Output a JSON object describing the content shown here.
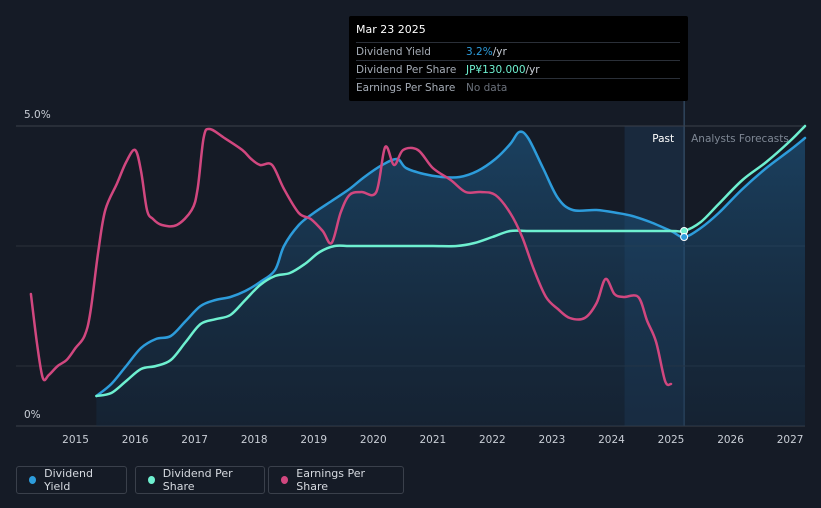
{
  "tooltip": {
    "date": "Mar 23 2025",
    "rows": [
      {
        "label": "Dividend Yield",
        "value": "3.2%",
        "suffix": " /yr",
        "color": "#2d9cdb"
      },
      {
        "label": "Dividend Per Share",
        "value": "JP¥130.000",
        "suffix": " /yr",
        "color": "#6ef0d0"
      },
      {
        "label": "Earnings Per Share",
        "value": "No data",
        "suffix": "",
        "color": "#6b717b"
      }
    ]
  },
  "chart_data": {
    "type": "line",
    "y_tick_labels": [
      "5.0%",
      "0%"
    ],
    "ylim": [
      0,
      5.0
    ],
    "xlim": [
      2014.0,
      2027.25
    ],
    "x_tick_labels": [
      "2015",
      "2016",
      "2017",
      "2018",
      "2019",
      "2020",
      "2021",
      "2022",
      "2023",
      "2024",
      "2025",
      "2026",
      "2027"
    ],
    "x_ticks": [
      2015,
      2016,
      2017,
      2018,
      2019,
      2020,
      2021,
      2022,
      2023,
      2024,
      2025,
      2026,
      2027
    ],
    "past_label": "Past",
    "forecast_label": "Analysts Forecasts",
    "forecast_start": 2025.22,
    "shade_start": 2024.22,
    "grid": true,
    "series": [
      {
        "name": "Dividend Yield",
        "color": "#2d9cdb",
        "area": true,
        "x": [
          2015.35,
          2015.6,
          2015.85,
          2016.1,
          2016.35,
          2016.6,
          2016.85,
          2017.1,
          2017.35,
          2017.6,
          2017.85,
          2018.1,
          2018.35,
          2018.5,
          2018.75,
          2019.0,
          2019.3,
          2019.6,
          2019.85,
          2020.15,
          2020.4,
          2020.55,
          2020.85,
          2021.15,
          2021.45,
          2021.75,
          2022.05,
          2022.3,
          2022.45,
          2022.6,
          2022.85,
          2023.1,
          2023.35,
          2023.75,
          2024.1,
          2024.35,
          2024.65,
          2025.0,
          2025.22,
          2025.5,
          2025.8,
          2026.2,
          2026.6,
          2027.0,
          2027.25
        ],
        "values": [
          0.5,
          0.7,
          1.0,
          1.3,
          1.45,
          1.5,
          1.75,
          2.0,
          2.1,
          2.15,
          2.25,
          2.4,
          2.6,
          3.0,
          3.35,
          3.55,
          3.75,
          3.95,
          4.15,
          4.35,
          4.45,
          4.3,
          4.2,
          4.15,
          4.15,
          4.25,
          4.45,
          4.7,
          4.9,
          4.8,
          4.3,
          3.8,
          3.6,
          3.6,
          3.55,
          3.5,
          3.4,
          3.25,
          3.15,
          3.3,
          3.55,
          3.95,
          4.3,
          4.6,
          4.8
        ]
      },
      {
        "name": "Dividend Per Share",
        "color": "#6ef0d0",
        "area": false,
        "x": [
          2015.35,
          2015.6,
          2015.85,
          2016.1,
          2016.35,
          2016.6,
          2016.85,
          2017.1,
          2017.35,
          2017.6,
          2017.85,
          2018.1,
          2018.35,
          2018.6,
          2018.85,
          2019.1,
          2019.35,
          2019.6,
          2020.0,
          2020.5,
          2021.0,
          2021.4,
          2021.7,
          2022.0,
          2022.3,
          2022.6,
          2023.0,
          2024.0,
          2025.0,
          2025.22,
          2025.5,
          2025.8,
          2026.2,
          2026.6,
          2027.0,
          2027.25
        ],
        "values": [
          0.5,
          0.55,
          0.75,
          0.95,
          1.0,
          1.1,
          1.4,
          1.7,
          1.78,
          1.85,
          2.1,
          2.35,
          2.5,
          2.55,
          2.7,
          2.9,
          3.0,
          3.0,
          3.0,
          3.0,
          3.0,
          3.0,
          3.05,
          3.15,
          3.25,
          3.25,
          3.25,
          3.25,
          3.25,
          3.25,
          3.4,
          3.7,
          4.1,
          4.4,
          4.75,
          5.0
        ]
      },
      {
        "name": "Earnings Per Share",
        "color": "#d1477f",
        "area": false,
        "x": [
          2014.25,
          2014.35,
          2014.45,
          2014.55,
          2014.7,
          2014.85,
          2015.0,
          2015.15,
          2015.25,
          2015.38,
          2015.5,
          2015.7,
          2015.85,
          2016.0,
          2016.1,
          2016.2,
          2016.3,
          2016.45,
          2016.7,
          2016.95,
          2017.05,
          2017.15,
          2017.25,
          2017.5,
          2017.8,
          2017.95,
          2018.1,
          2018.3,
          2018.5,
          2018.75,
          2018.95,
          2019.15,
          2019.3,
          2019.45,
          2019.6,
          2019.8,
          2020.05,
          2020.2,
          2020.35,
          2020.5,
          2020.75,
          2021.0,
          2021.3,
          2021.55,
          2021.8,
          2022.05,
          2022.3,
          2022.5,
          2022.7,
          2022.9,
          2023.1,
          2023.3,
          2023.55,
          2023.75,
          2023.9,
          2024.05,
          2024.2,
          2024.45,
          2024.6,
          2024.75,
          2024.9,
          2025.0
        ],
        "values": [
          2.2,
          1.4,
          0.8,
          0.85,
          1.0,
          1.1,
          1.3,
          1.5,
          1.9,
          2.9,
          3.6,
          4.05,
          4.4,
          4.6,
          4.25,
          3.6,
          3.45,
          3.35,
          3.35,
          3.6,
          3.95,
          4.8,
          4.95,
          4.8,
          4.6,
          4.45,
          4.35,
          4.35,
          3.95,
          3.55,
          3.45,
          3.25,
          3.05,
          3.55,
          3.85,
          3.9,
          3.9,
          4.65,
          4.35,
          4.6,
          4.6,
          4.3,
          4.1,
          3.9,
          3.9,
          3.85,
          3.55,
          3.15,
          2.6,
          2.15,
          1.95,
          1.8,
          1.8,
          2.05,
          2.45,
          2.2,
          2.15,
          2.15,
          1.75,
          1.4,
          0.75,
          0.7
        ]
      }
    ]
  },
  "legend": [
    {
      "label": "Dividend Yield",
      "color": "#2d9cdb"
    },
    {
      "label": "Dividend Per Share",
      "color": "#6ef0d0"
    },
    {
      "label": "Earnings Per Share",
      "color": "#d1477f"
    }
  ]
}
